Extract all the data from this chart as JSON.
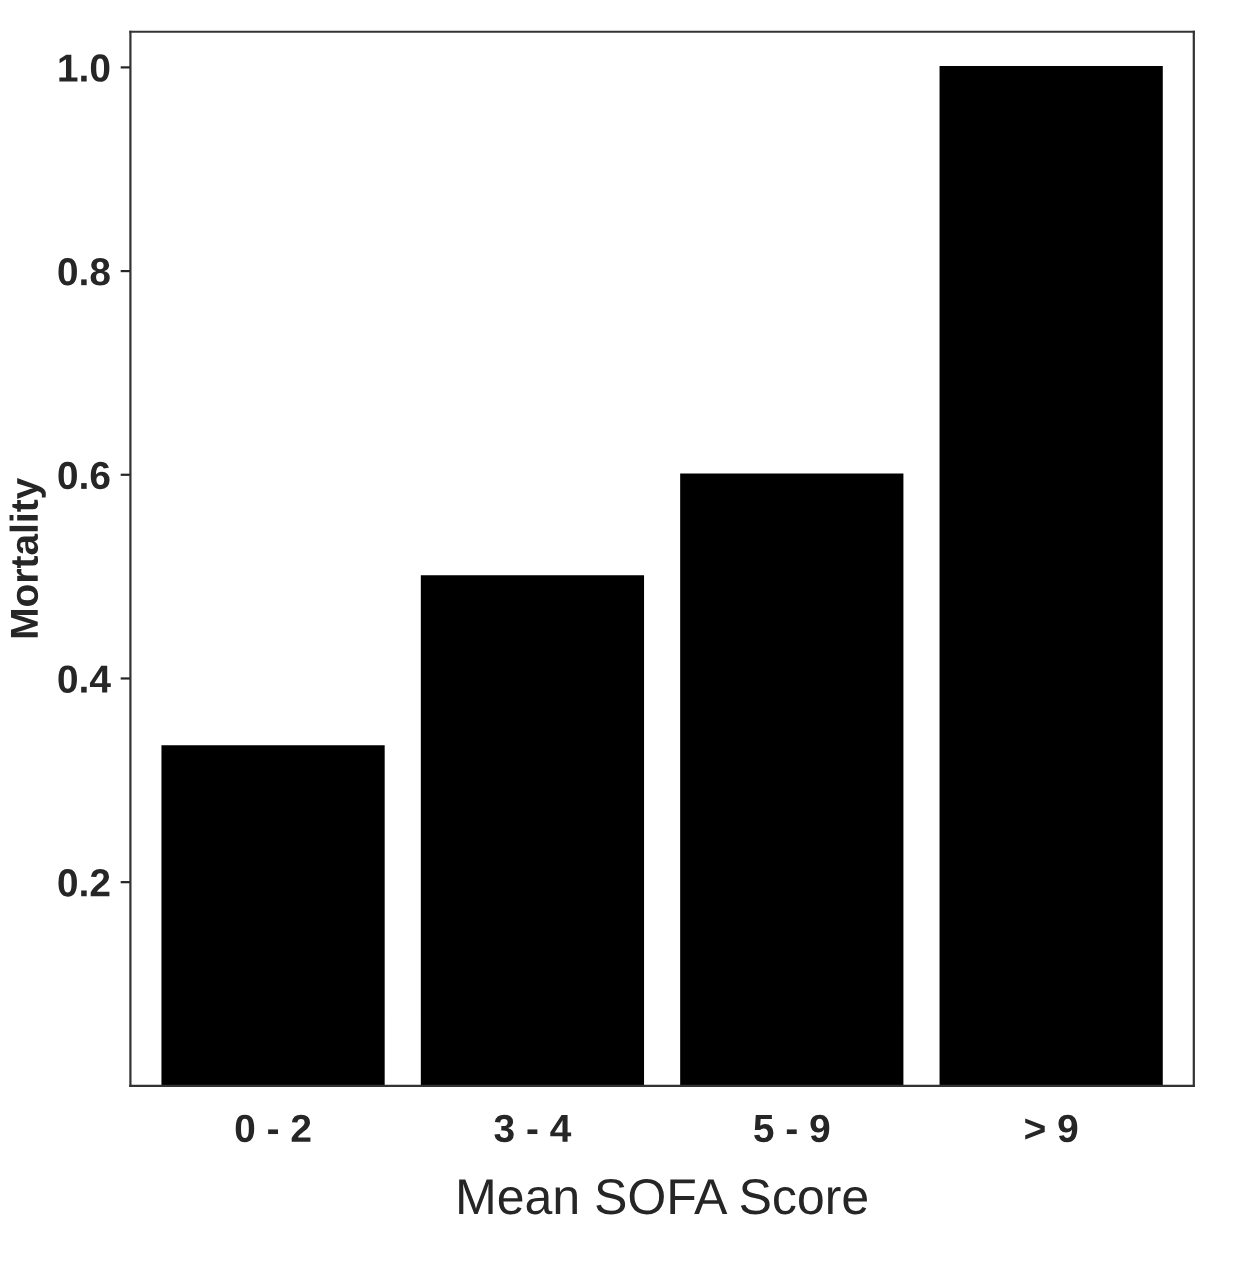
{
  "chart_data": {
    "type": "bar",
    "xlabel": "Mean SOFA Score",
    "ylabel": "Mortality",
    "categories": [
      "0 - 2",
      "3 - 4",
      "5 - 9",
      "> 9"
    ],
    "values": [
      0.333,
      0.5,
      0.6,
      1.0
    ],
    "color": "#000000",
    "ylim": [
      0,
      1.035
    ],
    "yticks": [
      0.2,
      0.4,
      0.6,
      0.8,
      {
        "value": 1,
        "label": "1.0"
      }
    ],
    "grid": false
  }
}
